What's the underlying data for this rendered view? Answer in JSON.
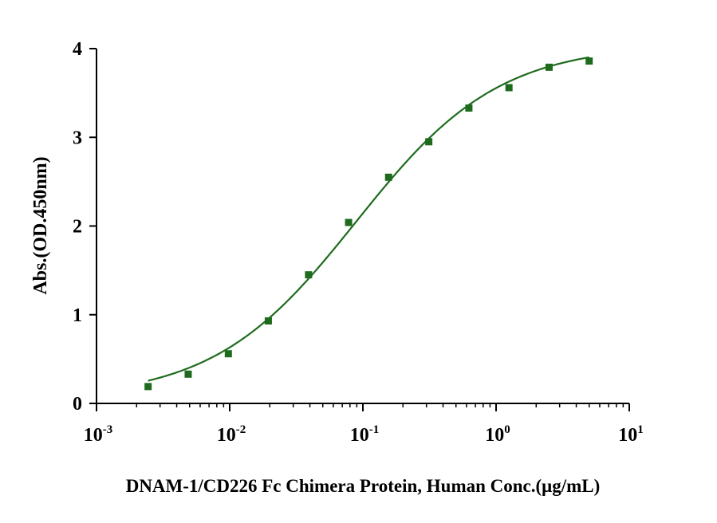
{
  "chart_data": {
    "type": "scatter",
    "title": "",
    "xlabel": "DNAM-1/CD226 Fc Chimera Protein, Human Conc.(μg/mL)",
    "ylabel": "Abs.(OD.450nm)",
    "x_scale": "log",
    "xlim": [
      0.001,
      10
    ],
    "ylim": [
      0,
      4
    ],
    "x_ticks": [
      {
        "value": 0.001,
        "base": "10",
        "exp": "-3"
      },
      {
        "value": 0.01,
        "base": "10",
        "exp": "-2"
      },
      {
        "value": 0.1,
        "base": "10",
        "exp": "-1"
      },
      {
        "value": 1,
        "base": "10",
        "exp": "0"
      },
      {
        "value": 10,
        "base": "10",
        "exp": "1"
      }
    ],
    "y_ticks": [
      "0",
      "1",
      "2",
      "3",
      "4"
    ],
    "grid": false,
    "series": [
      {
        "color": "#1e6b1e",
        "marker": "square",
        "fit": "4PL",
        "x": [
          0.00244,
          0.00488,
          0.00977,
          0.0195,
          0.0391,
          0.0781,
          0.156,
          0.3125,
          0.625,
          1.25,
          2.5,
          5
        ],
        "y": [
          0.19,
          0.33,
          0.56,
          0.93,
          1.45,
          2.04,
          2.55,
          2.95,
          3.33,
          3.56,
          3.79,
          3.86
        ]
      }
    ]
  }
}
